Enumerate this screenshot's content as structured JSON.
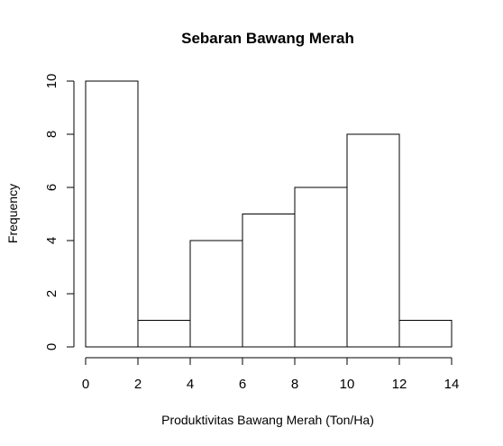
{
  "chart_data": {
    "type": "bar",
    "subtype": "histogram",
    "title": "Sebaran Bawang Merah",
    "xlabel": "Produktivitas Bawang Merah (Ton/Ha)",
    "ylabel": "Frequency",
    "bins": [
      {
        "from": 0,
        "to": 2,
        "count": 10
      },
      {
        "from": 2,
        "to": 4,
        "count": 1
      },
      {
        "from": 4,
        "to": 6,
        "count": 4
      },
      {
        "from": 6,
        "to": 8,
        "count": 5
      },
      {
        "from": 8,
        "to": 10,
        "count": 6
      },
      {
        "from": 10,
        "to": 12,
        "count": 8
      },
      {
        "from": 12,
        "to": 14,
        "count": 1
      }
    ],
    "xlim": [
      0,
      14
    ],
    "ylim": [
      0,
      10
    ],
    "x_ticks": [
      "0",
      "2",
      "4",
      "6",
      "8",
      "10",
      "12",
      "14"
    ],
    "y_ticks": [
      "0",
      "2",
      "4",
      "6",
      "8",
      "10"
    ],
    "bar_fill": "#ffffff",
    "bar_stroke": "#000000",
    "grid": false,
    "legend": "none"
  }
}
